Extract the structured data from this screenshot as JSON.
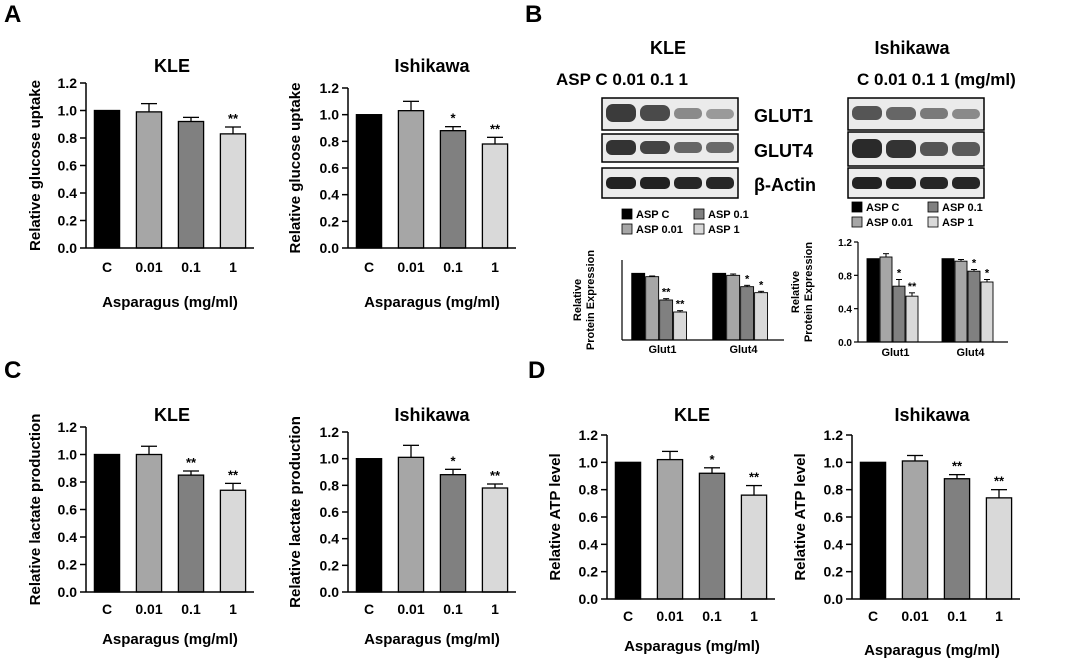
{
  "panel_letters": {
    "a": "A",
    "b": "B",
    "c": "C",
    "d": "D"
  },
  "colors": {
    "c": "#000000",
    "d001": "#a6a6a6",
    "d01": "#808080",
    "d1": "#d9d9d9"
  },
  "western_blot": {
    "kle_title": "KLE",
    "ishikawa_title": "Ishikawa",
    "kle_lanes": "ASP C 0.01 0.1 1",
    "ishikawa_lanes": "C 0.01 0.1 1 (mg/ml)",
    "bands": [
      "GLUT1",
      "GLUT4",
      "β-Actin"
    ]
  },
  "chart_data": [
    {
      "id": "a_kle",
      "panel": "A",
      "type": "bar",
      "title": "KLE",
      "ylabel": "Relative glucose uptake",
      "xlabel": "Asparagus (mg/ml)",
      "categories": [
        "C",
        "0.01",
        "0.1",
        "1"
      ],
      "values": [
        1.0,
        0.99,
        0.92,
        0.83
      ],
      "errors": [
        0,
        0.06,
        0.03,
        0.05
      ],
      "significance": [
        "",
        "",
        "",
        "**"
      ],
      "ylim": [
        0,
        1.2
      ],
      "yticks": [
        "0.0",
        "0.2",
        "0.4",
        "0.6",
        "0.8",
        "1.0",
        "1.2"
      ]
    },
    {
      "id": "a_ish",
      "panel": "A",
      "type": "bar",
      "title": "Ishikawa",
      "ylabel": "Relative glucose uptake",
      "xlabel": "Asparagus (mg/ml)",
      "categories": [
        "C",
        "0.01",
        "0.1",
        "1"
      ],
      "values": [
        1.0,
        1.03,
        0.88,
        0.78
      ],
      "errors": [
        0,
        0.07,
        0.03,
        0.05
      ],
      "significance": [
        "",
        "",
        "*",
        "**"
      ],
      "ylim": [
        0,
        1.2
      ],
      "yticks": [
        "0.0",
        "0.2",
        "0.4",
        "0.6",
        "0.8",
        "1.0",
        "1.2"
      ]
    },
    {
      "id": "b_kle",
      "panel": "B",
      "type": "bar",
      "ylabel_lines": [
        "Relative",
        "Protein Expression"
      ],
      "groups": [
        "Glut1",
        "Glut4"
      ],
      "series": [
        {
          "name": "ASP C",
          "values": [
            1.0,
            1.0
          ],
          "errors": [
            0,
            0
          ]
        },
        {
          "name": "ASP 0.01",
          "values": [
            0.95,
            0.97
          ],
          "errors": [
            0.01,
            0.02
          ]
        },
        {
          "name": "ASP 0.1",
          "values": [
            0.6,
            0.8
          ],
          "errors": [
            0.02,
            0.02
          ]
        },
        {
          "name": "ASP 1",
          "values": [
            0.42,
            0.71
          ],
          "errors": [
            0.02,
            0.02
          ]
        }
      ],
      "significance": [
        [
          "",
          "",
          "**",
          "**"
        ],
        [
          "",
          "",
          "*",
          "*"
        ]
      ],
      "ylim": [
        0,
        1.2
      ],
      "yticks": []
    },
    {
      "id": "b_ish",
      "panel": "B",
      "type": "bar",
      "ylabel_lines": [
        "Relative",
        "Protein Expression"
      ],
      "groups": [
        "Glut1",
        "Glut4"
      ],
      "series": [
        {
          "name": "ASP C",
          "values": [
            1.0,
            1.0
          ],
          "errors": [
            0,
            0
          ]
        },
        {
          "name": "ASP 0.01",
          "values": [
            1.02,
            0.97
          ],
          "errors": [
            0.04,
            0.02
          ]
        },
        {
          "name": "ASP 0.1",
          "values": [
            0.67,
            0.85
          ],
          "errors": [
            0.08,
            0.02
          ]
        },
        {
          "name": "ASP 1",
          "values": [
            0.55,
            0.72
          ],
          "errors": [
            0.04,
            0.03
          ]
        }
      ],
      "significance": [
        [
          "",
          "",
          "*",
          "**"
        ],
        [
          "",
          "",
          "*",
          "*"
        ]
      ],
      "ylim": [
        0,
        1.2
      ],
      "yticks": [
        "0.0",
        "0.4",
        "0.8",
        "1.2"
      ]
    },
    {
      "id": "c_kle",
      "panel": "C",
      "type": "bar",
      "title": "KLE",
      "ylabel": "Relative lactate production",
      "xlabel": "Asparagus (mg/ml)",
      "categories": [
        "C",
        "0.01",
        "0.1",
        "1"
      ],
      "values": [
        1.0,
        1.0,
        0.85,
        0.74
      ],
      "errors": [
        0,
        0.06,
        0.03,
        0.05
      ],
      "significance": [
        "",
        "",
        "**",
        "**"
      ],
      "ylim": [
        0,
        1.2
      ],
      "yticks": [
        "0.0",
        "0.2",
        "0.4",
        "0.6",
        "0.8",
        "1.0",
        "1.2"
      ]
    },
    {
      "id": "c_ish",
      "panel": "C",
      "type": "bar",
      "title": "Ishikawa",
      "ylabel": "Relative lactate production",
      "xlabel": "Asparagus (mg/ml)",
      "categories": [
        "C",
        "0.01",
        "0.1",
        "1"
      ],
      "values": [
        1.0,
        1.01,
        0.88,
        0.78
      ],
      "errors": [
        0,
        0.09,
        0.04,
        0.03
      ],
      "significance": [
        "",
        "",
        "*",
        "**"
      ],
      "ylim": [
        0,
        1.2
      ],
      "yticks": [
        "0.0",
        "0.2",
        "0.4",
        "0.6",
        "0.8",
        "1.0",
        "1.2"
      ]
    },
    {
      "id": "d_kle",
      "panel": "D",
      "type": "bar",
      "title": "KLE",
      "ylabel": "Relative ATP level",
      "xlabel": "Asparagus (mg/ml)",
      "categories": [
        "C",
        "0.01",
        "0.1",
        "1"
      ],
      "values": [
        1.0,
        1.02,
        0.92,
        0.76
      ],
      "errors": [
        0,
        0.06,
        0.04,
        0.07
      ],
      "significance": [
        "",
        "",
        "*",
        "**"
      ],
      "ylim": [
        0,
        1.2
      ],
      "yticks": [
        "0.0",
        "0.2",
        "0.4",
        "0.6",
        "0.8",
        "1.0",
        "1.2"
      ]
    },
    {
      "id": "d_ish",
      "panel": "D",
      "type": "bar",
      "title": "Ishikawa",
      "ylabel": "Relative ATP level",
      "xlabel": "Asparagus (mg/ml)",
      "categories": [
        "C",
        "0.01",
        "0.1",
        "1"
      ],
      "values": [
        1.0,
        1.01,
        0.88,
        0.74
      ],
      "errors": [
        0,
        0.04,
        0.03,
        0.06
      ],
      "significance": [
        "",
        "",
        "**",
        "**"
      ],
      "ylim": [
        0,
        1.2
      ],
      "yticks": [
        "0.0",
        "0.2",
        "0.4",
        "0.6",
        "0.8",
        "1.0",
        "1.2"
      ]
    }
  ]
}
